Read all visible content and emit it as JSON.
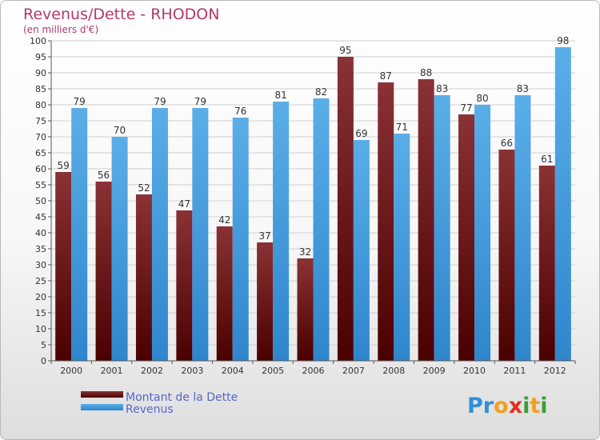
{
  "chart_data": {
    "type": "bar",
    "title": "Revenus/Dette - RHODON",
    "subtitle": "(en milliers d'€)",
    "categories": [
      "2000",
      "2001",
      "2002",
      "2003",
      "2004",
      "2005",
      "2006",
      "2007",
      "2008",
      "2009",
      "2010",
      "2011",
      "2012"
    ],
    "series": [
      {
        "name": "Montant de la Dette",
        "values": [
          59,
          56,
          52,
          47,
          42,
          37,
          32,
          95,
          87,
          88,
          77,
          66,
          61
        ]
      },
      {
        "name": "Revenus",
        "values": [
          79,
          70,
          79,
          79,
          76,
          81,
          82,
          69,
          71,
          83,
          80,
          83,
          98
        ]
      }
    ],
    "ylim": [
      0,
      100
    ],
    "ytick_step": 5,
    "grid": true,
    "legend_position": "bottom-left",
    "xlabel": "",
    "ylabel": ""
  },
  "brand": {
    "letters": [
      "P",
      "r",
      "o",
      "x",
      "i",
      "t",
      "i"
    ],
    "colors": [
      "#2f8fd8",
      "#2f8fd8",
      "#f0a020",
      "#e03020",
      "#3aa03a",
      "#f0a020",
      "#3aa03a"
    ]
  },
  "colors": {
    "title": "#b03a6a",
    "debt_top": "#8a3236",
    "debt_bottom": "#4a0000",
    "revenue_top": "#5aaee8",
    "revenue_bottom": "#2f86cc",
    "legend_text": "#5566cc",
    "axis_text": "#333333",
    "grid": "#cfcfcf"
  }
}
